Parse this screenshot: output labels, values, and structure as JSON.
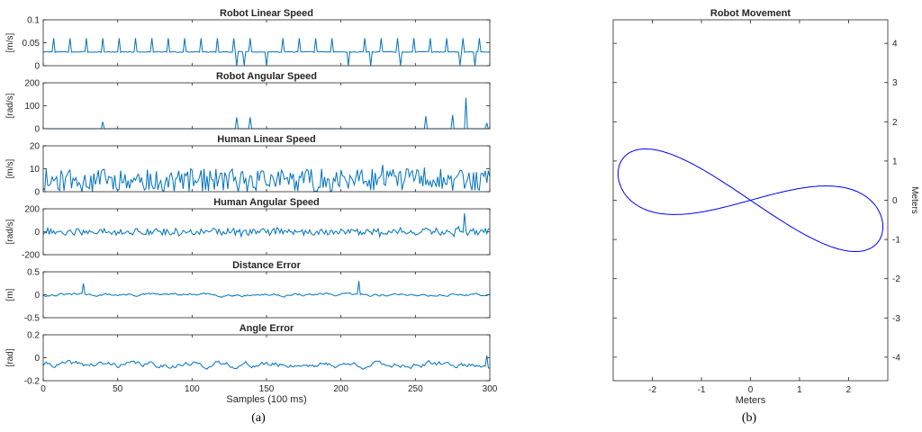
{
  "figure": {
    "caption_a": "(a)",
    "caption_b": "(b)"
  },
  "chart_data": [
    {
      "type": "line",
      "title": "Robot Linear Speed",
      "ylabel": "[m/s]",
      "xlim": [
        0,
        300
      ],
      "ylim": [
        0,
        0.1
      ],
      "yticks": [
        "0",
        "0.05",
        "0.1"
      ],
      "ytick_values": [
        0,
        0.05,
        0.1
      ],
      "color": "#0072BD",
      "signal": {
        "kind": "spikes",
        "base": 0.03,
        "noise": 0.002,
        "spike_every": 11,
        "spike_height": 0.03,
        "dips": [
          130,
          135,
          150,
          205,
          220,
          240,
          280,
          290
        ],
        "dip_value": 0.0,
        "seed": 3
      }
    },
    {
      "type": "line",
      "title": "Robot Angular Speed",
      "ylabel": "[rad/s]",
      "xlim": [
        0,
        300
      ],
      "ylim": [
        0,
        200
      ],
      "yticks": [
        "0",
        "100",
        "200"
      ],
      "ytick_values": [
        0,
        100,
        200
      ],
      "color": "#0072BD",
      "signal": {
        "kind": "sparse",
        "base": 0,
        "peaks": [
          [
            40,
            30
          ],
          [
            130,
            50
          ],
          [
            139,
            50
          ],
          [
            257,
            55
          ],
          [
            275,
            60
          ],
          [
            284,
            135
          ],
          [
            298,
            25
          ]
        ]
      }
    },
    {
      "type": "line",
      "title": "Human Linear Speed",
      "ylabel": "[m/s]",
      "xlim": [
        0,
        300
      ],
      "ylim": [
        0,
        20
      ],
      "yticks": [
        "0",
        "10",
        "20"
      ],
      "ytick_values": [
        0,
        10,
        20
      ],
      "color": "#0072BD",
      "signal": {
        "kind": "noise",
        "base": 5,
        "amp": 5,
        "seed": 11,
        "clip": [
          0,
          12
        ]
      }
    },
    {
      "type": "line",
      "title": "Human Angular Speed",
      "ylabel": "[rad/s]",
      "xlim": [
        0,
        300
      ],
      "ylim": [
        -200,
        200
      ],
      "yticks": [
        "-200",
        "0",
        "200"
      ],
      "ytick_values": [
        -200,
        0,
        200
      ],
      "color": "#0072BD",
      "signal": {
        "kind": "noise",
        "base": 0,
        "amp": 30,
        "seed": 21,
        "peaks": [
          [
            283,
            160
          ]
        ]
      }
    },
    {
      "type": "line",
      "title": "Distance Error",
      "ylabel": "[m]",
      "xlim": [
        0,
        300
      ],
      "ylim": [
        -0.5,
        0.5
      ],
      "yticks": [
        "-0.5",
        "0",
        "0.5"
      ],
      "ytick_values": [
        -0.5,
        0,
        0.5
      ],
      "color": "#0072BD",
      "signal": {
        "kind": "smooth",
        "base": 0.0,
        "amp": 0.06,
        "seed": 31,
        "peaks": [
          [
            27,
            0.25
          ],
          [
            212,
            0.3
          ]
        ]
      }
    },
    {
      "type": "line",
      "title": "Angle Error",
      "ylabel": "[rad]",
      "xlim": [
        0,
        300
      ],
      "ylim": [
        -0.2,
        0.2
      ],
      "yticks": [
        "-0.2",
        "0",
        "0.2"
      ],
      "ytick_values": [
        -0.2,
        0,
        0.2
      ],
      "xticks": [
        "0",
        "50",
        "100",
        "150",
        "200",
        "250",
        "300"
      ],
      "xtick_values": [
        0,
        50,
        100,
        150,
        200,
        250,
        300
      ],
      "xlabel": "Samples (100 ms)",
      "color": "#0072BD",
      "signal": {
        "kind": "smooth",
        "base": -0.06,
        "amp": 0.05,
        "seed": 41,
        "peaks": [
          [
            298,
            0.02
          ]
        ]
      }
    },
    {
      "type": "line",
      "title": "Robot Movement",
      "xlabel": "Meters",
      "ylabel": "Meters",
      "xlim": [
        -2.8,
        2.8
      ],
      "ylim": [
        -4.6,
        4.6
      ],
      "xticks": [
        "-2",
        "-1",
        "0",
        "1",
        "2"
      ],
      "xtick_values": [
        -2,
        -1,
        0,
        1,
        2
      ],
      "yticks": [
        "-4",
        "-3",
        "-2",
        "-1",
        "0",
        "1",
        "2",
        "3",
        "4"
      ],
      "ytick_values": [
        -4,
        -3,
        -2,
        -1,
        0,
        1,
        2,
        3,
        4
      ],
      "color": "#0000FF",
      "trajectory": {
        "kind": "figure-eight",
        "ax": 2.7,
        "ay": 0.8,
        "tilt": -0.25
      }
    }
  ]
}
